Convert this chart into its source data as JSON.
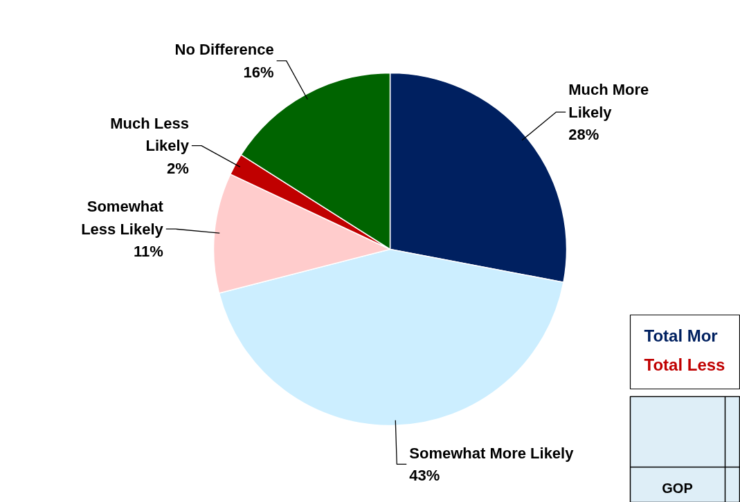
{
  "chart_data": {
    "type": "pie",
    "categories": [
      "Much More Likely",
      "Somewhat More Likely",
      "Somewhat Less Likely",
      "Much Less Likely",
      "No Difference"
    ],
    "values": [
      28,
      43,
      11,
      2,
      16
    ],
    "colors": [
      "#002060",
      "#cceeff",
      "#ffcccc",
      "#c00000",
      "#006400"
    ],
    "value_labels": [
      "28%",
      "43%",
      "11%",
      "2%",
      "16%"
    ],
    "annotations": [
      "Total Mor",
      "Total Less",
      "GOP"
    ]
  }
}
